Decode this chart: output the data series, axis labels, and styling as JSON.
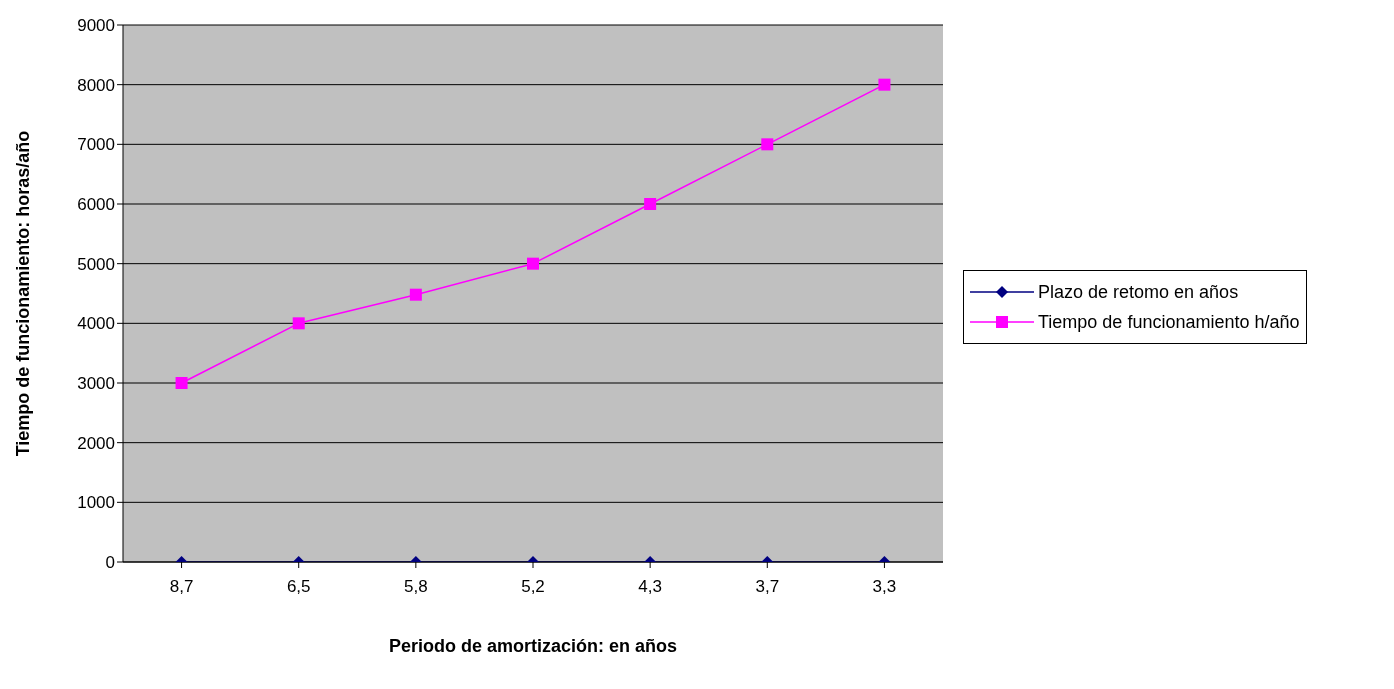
{
  "chart_data": {
    "type": "line",
    "xlabel": "Periodo de amortización: en años",
    "ylabel": "Tiempo de funcionamiento: horas/año",
    "categories": [
      "8,7",
      "6,5",
      "5,8",
      "5,2",
      "4,3",
      "3,7",
      "3,3"
    ],
    "series": [
      {
        "name": "Plazo de retomo en años",
        "color": "#000080",
        "marker": "diamond",
        "values": [
          0,
          0,
          0,
          0,
          0,
          0,
          0
        ]
      },
      {
        "name": "Tiempo de funcionamiento h/año",
        "color": "#ff00ff",
        "marker": "square",
        "values": [
          3000,
          4000,
          4480,
          5000,
          6000,
          7000,
          8000
        ]
      }
    ],
    "ylim": [
      0,
      9000
    ],
    "yticks": [
      0,
      1000,
      2000,
      3000,
      4000,
      5000,
      6000,
      7000,
      8000,
      9000
    ],
    "grid": "y",
    "legend": "right"
  }
}
